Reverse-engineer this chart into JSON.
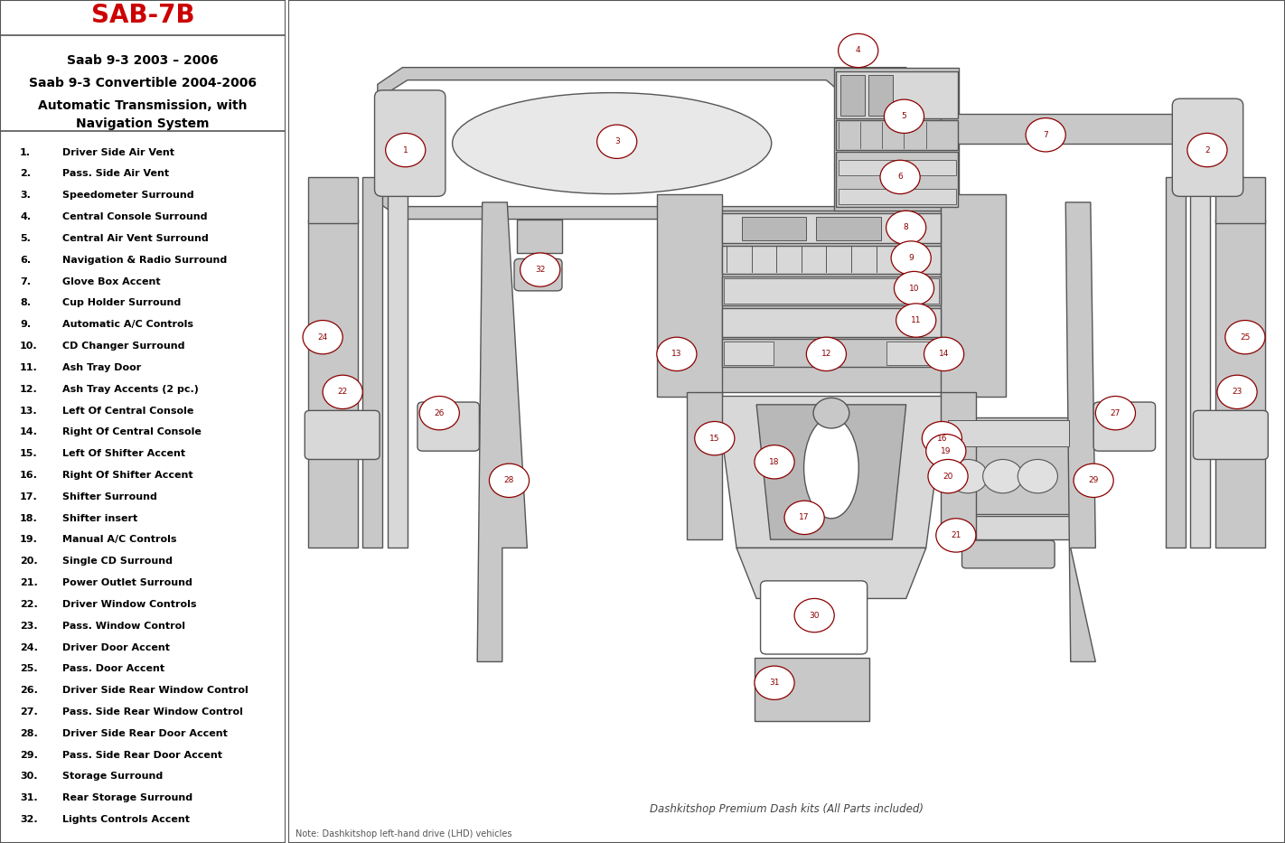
{
  "title": "SAB-7B",
  "subtitle1": "Saab 9-3 2003 – 2006",
  "subtitle2": "Saab 9-3 Convertible 2004-2006",
  "subtitle3": "Automatic Transmission, with",
  "subtitle4": "Navigation System",
  "parts": [
    [
      "1.",
      "Driver Side Air Vent"
    ],
    [
      "2.",
      "Pass. Side Air Vent"
    ],
    [
      "3.",
      "Speedometer Surround"
    ],
    [
      "4.",
      "Central Console Surround"
    ],
    [
      "5.",
      "Central Air Vent Surround"
    ],
    [
      "6.",
      "Navigation & Radio Surround"
    ],
    [
      "7.",
      "Glove Box Accent"
    ],
    [
      "8.",
      "Cup Holder Surround"
    ],
    [
      "9.",
      "Automatic A/C Controls"
    ],
    [
      "10.",
      "CD Changer Surround"
    ],
    [
      "11.",
      "Ash Tray Door"
    ],
    [
      "12.",
      "Ash Tray Accents (2 pc.)"
    ],
    [
      "13.",
      "Left Of Central Console"
    ],
    [
      "14.",
      "Right Of Central Console"
    ],
    [
      "15.",
      "Left Of Shifter Accent"
    ],
    [
      "16.",
      "Right Of Shifter Accent"
    ],
    [
      "17.",
      "Shifter Surround"
    ],
    [
      "18.",
      "Shifter insert"
    ],
    [
      "19.",
      "Manual A/C Controls"
    ],
    [
      "20.",
      "Single CD Surround"
    ],
    [
      "21.",
      "Power Outlet Surround"
    ],
    [
      "22.",
      "Driver Window Controls"
    ],
    [
      "23.",
      "Pass. Window Control"
    ],
    [
      "24.",
      "Driver Door Accent"
    ],
    [
      "25.",
      "Pass. Door Accent"
    ],
    [
      "26.",
      "Driver Side Rear Window Control"
    ],
    [
      "27.",
      "Pass. Side Rear Window Control"
    ],
    [
      "28.",
      "Driver Side Rear Door Accent"
    ],
    [
      "29.",
      "Pass. Side Rear Door Accent"
    ],
    [
      "30.",
      "Storage Surround"
    ],
    [
      "31.",
      "Rear Storage Surround"
    ],
    [
      "32.",
      "Lights Controls Accent"
    ]
  ],
  "footer_note": "Note: Dashkitshop left-hand drive (LHD) vehicles",
  "footer_brand": "Dashkitshop Premium Dash kits (All Parts included)",
  "bg_color": "#ffffff",
  "title_color": "#cc0000",
  "text_color": "#000000",
  "border_color": "#555555",
  "dc": "#c8c8c8",
  "dc2": "#d8d8d8",
  "dc3": "#b8b8b8",
  "do": "#555555",
  "number_color": "#8b0000"
}
